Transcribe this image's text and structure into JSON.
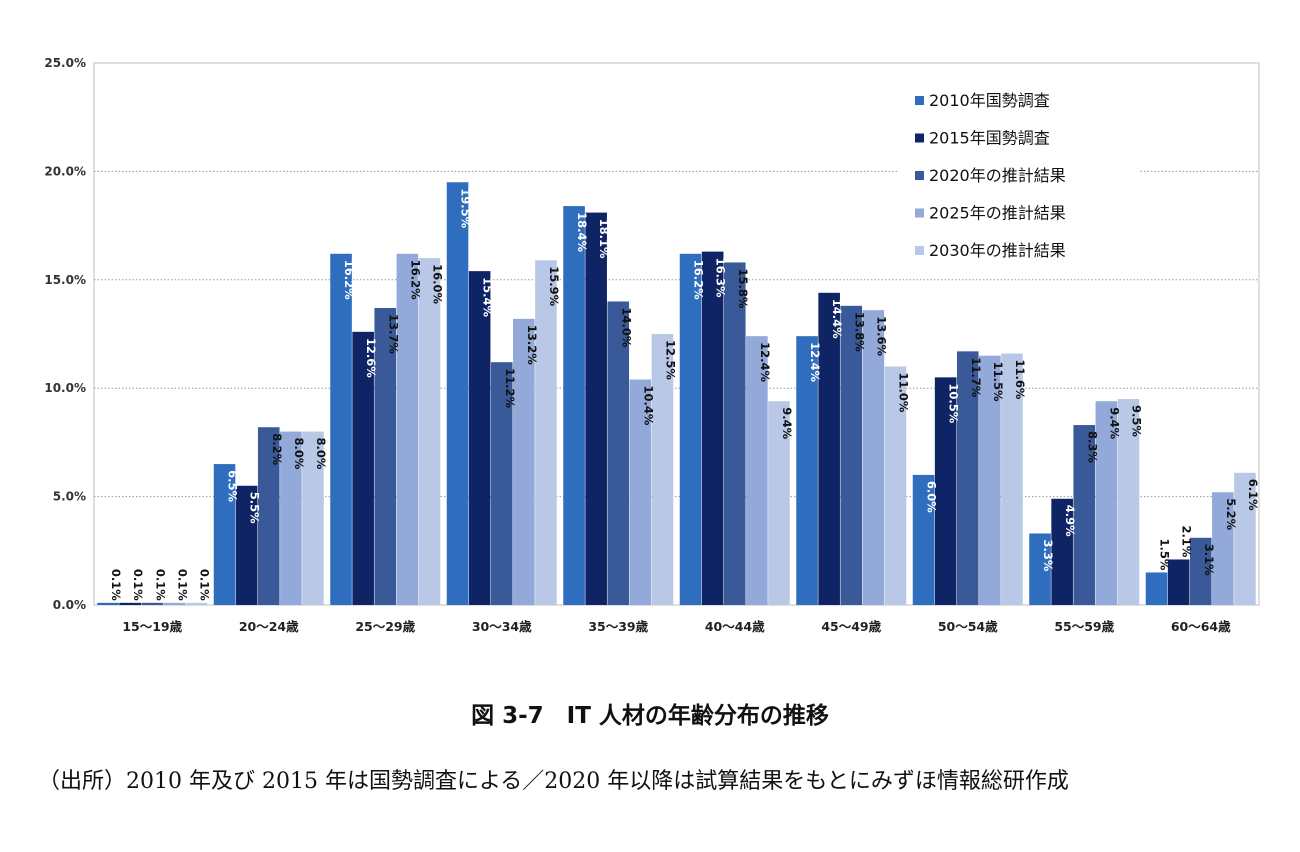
{
  "chart_data": {
    "type": "bar",
    "categories": [
      "15～19歳",
      "20～24歳",
      "25～29歳",
      "30～34歳",
      "35～39歳",
      "40～44歳",
      "45～49歳",
      "50～54歳",
      "55～59歳",
      "60～64歳"
    ],
    "series": [
      {
        "name": "2010年国勢調査",
        "color": "#2f6dbf",
        "labelColor": "#ffffff",
        "values": [
          0.1,
          6.5,
          16.2,
          19.5,
          18.4,
          16.2,
          12.4,
          6.0,
          3.3,
          1.5
        ],
        "labels": [
          "0.1%",
          "6.5%",
          "16.2%",
          "19.5%",
          "18.4%",
          "16.2%",
          "12.4%",
          "6.0%",
          "3.3%",
          "1.5%"
        ]
      },
      {
        "name": "2015年国勢調査",
        "color": "#0f2464",
        "labelColor": "#ffffff",
        "values": [
          0.1,
          5.5,
          12.6,
          15.4,
          18.1,
          16.3,
          14.4,
          10.5,
          4.9,
          2.1
        ],
        "labels": [
          "0.1%",
          "5.5%",
          "12.6%",
          "15.4%",
          "18.1%",
          "16.3%",
          "14.4%",
          "10.5%",
          "4.9%",
          "2.1%"
        ]
      },
      {
        "name": "2020年の推計結果",
        "color": "#3a5998",
        "labelColor": "#111111",
        "values": [
          0.1,
          8.2,
          13.7,
          11.2,
          14.0,
          15.8,
          13.8,
          11.7,
          8.3,
          3.1
        ],
        "labels": [
          "0.1%",
          "8.2%",
          "13.7%",
          "11.2%",
          "14.0%",
          "15.8%",
          "13.8%",
          "11.7%",
          "8.3%",
          "3.1%"
        ]
      },
      {
        "name": "2025年の推計結果",
        "color": "#93a9d9",
        "labelColor": "#111111",
        "values": [
          0.1,
          8.0,
          16.2,
          13.2,
          10.4,
          12.4,
          13.6,
          11.5,
          9.4,
          5.2
        ],
        "labels": [
          "0.1%",
          "8.0%",
          "16.2%",
          "13.2%",
          "10.4%",
          "12.4%",
          "13.6%",
          "11.5%",
          "9.4%",
          "5.2%"
        ]
      },
      {
        "name": "2030年の推計結果",
        "color": "#b9c8e6",
        "labelColor": "#111111",
        "values": [
          0.1,
          8.0,
          16.0,
          15.9,
          12.5,
          9.4,
          11.0,
          11.6,
          9.5,
          6.1
        ],
        "labels": [
          "0.1%",
          "8.0%",
          "16.0%",
          "15.9%",
          "12.5%",
          "9.4%",
          "11.0%",
          "11.6%",
          "9.5%",
          "6.1%"
        ]
      }
    ],
    "yticks": [
      "0.0%",
      "5.0%",
      "10.0%",
      "15.0%",
      "20.0%",
      "25.0%"
    ],
    "ylim": [
      0,
      25
    ],
    "grid": true,
    "legend_position": "top-right",
    "title": "",
    "xlabel": "",
    "ylabel": ""
  },
  "caption": "図 3-7　IT 人材の年齢分布の推移",
  "source": "（出所）2010 年及び 2015 年は国勢調査による／2020 年以降は試算結果をもとにみずほ情報総研作成"
}
